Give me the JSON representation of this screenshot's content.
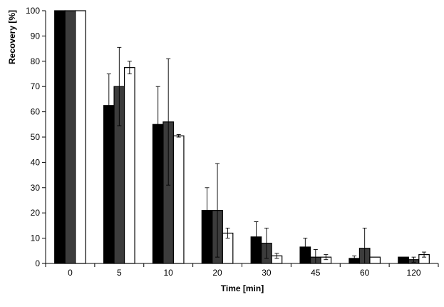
{
  "chart_data": {
    "type": "bar",
    "title": "",
    "xlabel": "Time [min]",
    "ylabel": "Recovery [%]",
    "ylim": [
      0,
      100
    ],
    "yticks": [
      0,
      10,
      20,
      30,
      40,
      50,
      60,
      70,
      80,
      90,
      100
    ],
    "grid": false,
    "legend": "none",
    "categories": [
      "0",
      "5",
      "10",
      "20",
      "30",
      "45",
      "60",
      "120"
    ],
    "series": [
      {
        "color": "#000000",
        "values": [
          100,
          62.5,
          55,
          21,
          10.5,
          6.5,
          2,
          2.5
        ],
        "error": [
          0,
          12.5,
          15,
          9,
          6,
          3.5,
          1,
          0
        ]
      },
      {
        "color": "#3c3c3c",
        "values": [
          100,
          70,
          56,
          21,
          8,
          2.5,
          6,
          1.5
        ],
        "error": [
          0,
          15.5,
          25,
          18.5,
          6,
          3,
          8,
          1
        ]
      },
      {
        "color": "#ffffff",
        "values": [
          100,
          77.5,
          50.5,
          12,
          3,
          2.5,
          2.5,
          3.5
        ],
        "error": [
          0,
          2.5,
          0.5,
          2,
          1,
          1,
          0,
          1
        ]
      }
    ]
  }
}
